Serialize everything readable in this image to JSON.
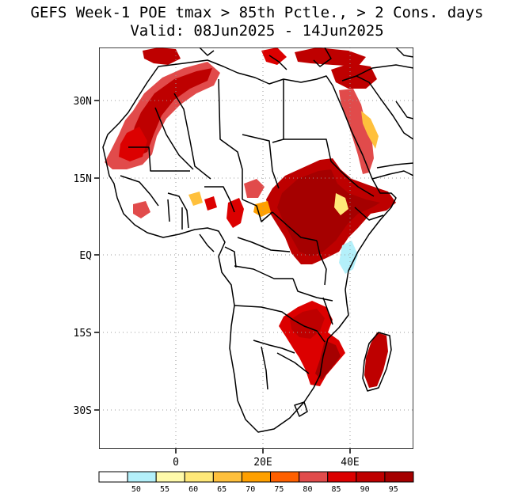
{
  "title": {
    "line1": "GEFS Week-1 POE tmax > 85th Pctle., > 2 Cons. days",
    "line2": "Valid: 08Jun2025 - 14Jun2025"
  },
  "axes": {
    "lat_labels": [
      "30N",
      "15N",
      "EQ",
      "15S",
      "30S"
    ],
    "lon_labels": [
      "0",
      "20E",
      "40E"
    ]
  },
  "colorbar": {
    "labels": [
      "50",
      "55",
      "60",
      "65",
      "70",
      "75",
      "80",
      "85",
      "90",
      "95"
    ],
    "colors": [
      "#ffffff",
      "#b4f0fa",
      "#fffaaa",
      "#ffe878",
      "#ffc03c",
      "#ffa000",
      "#ff6000",
      "#e14b4b",
      "#dc0000",
      "#be0000",
      "#a50000"
    ]
  }
}
